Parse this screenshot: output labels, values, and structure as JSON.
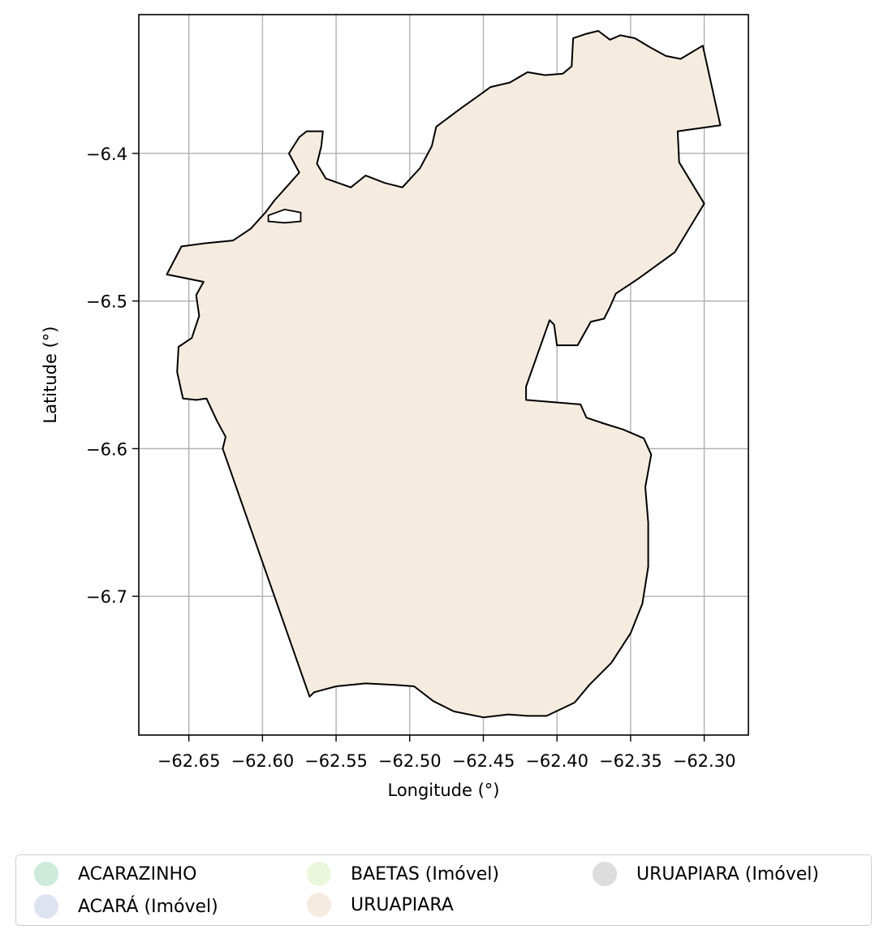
{
  "chart_data": {
    "type": "map",
    "xlabel": "Longitude (°)",
    "ylabel": "Latitude (°)",
    "xlim": [
      -62.684,
      -62.27
    ],
    "ylim": [
      -6.794,
      -6.306
    ],
    "grid": true,
    "xticks": [
      -62.65,
      -62.6,
      -62.55,
      -62.5,
      -62.45,
      -62.4,
      -62.35,
      -62.3
    ],
    "xtick_labels": [
      "−62.65",
      "−62.60",
      "−62.55",
      "−62.50",
      "−62.45",
      "−62.40",
      "−62.35",
      "−62.30"
    ],
    "yticks": [
      -6.4,
      -6.5,
      -6.6,
      -6.7
    ],
    "ytick_labels": [
      "−6.4",
      "−6.5",
      "−6.6",
      "−6.7"
    ],
    "fill_color": "#f5ebdf",
    "outline_color": "#000000",
    "grid_color": "#b0b0b0",
    "boundary": [
      [
        -62.665,
        -6.482
      ],
      [
        -62.655,
        -6.463
      ],
      [
        -62.64,
        -6.461
      ],
      [
        -62.62,
        -6.459
      ],
      [
        -62.608,
        -6.451
      ],
      [
        -62.598,
        -6.44
      ],
      [
        -62.592,
        -6.432
      ],
      [
        -62.583,
        -6.422
      ],
      [
        -62.575,
        -6.413
      ],
      [
        -62.582,
        -6.4
      ],
      [
        -62.575,
        -6.389
      ],
      [
        -62.57,
        -6.385
      ],
      [
        -62.559,
        -6.385
      ],
      [
        -62.56,
        -6.395
      ],
      [
        -62.563,
        -6.407
      ],
      [
        -62.557,
        -6.417
      ],
      [
        -62.54,
        -6.423
      ],
      [
        -62.53,
        -6.415
      ],
      [
        -62.517,
        -6.42
      ],
      [
        -62.505,
        -6.423
      ],
      [
        -62.493,
        -6.41
      ],
      [
        -62.485,
        -6.395
      ],
      [
        -62.482,
        -6.382
      ],
      [
        -62.466,
        -6.37
      ],
      [
        -62.452,
        -6.36
      ],
      [
        -62.445,
        -6.355
      ],
      [
        -62.432,
        -6.352
      ],
      [
        -62.42,
        -6.345
      ],
      [
        -62.408,
        -6.347
      ],
      [
        -62.396,
        -6.346
      ],
      [
        -62.39,
        -6.341
      ],
      [
        -62.389,
        -6.322
      ],
      [
        -62.38,
        -6.319
      ],
      [
        -62.372,
        -6.317
      ],
      [
        -62.364,
        -6.323
      ],
      [
        -62.357,
        -6.32
      ],
      [
        -62.347,
        -6.322
      ],
      [
        -62.337,
        -6.328
      ],
      [
        -62.326,
        -6.334
      ],
      [
        -62.316,
        -6.336
      ],
      [
        -62.301,
        -6.327
      ],
      [
        -62.289,
        -6.381
      ],
      [
        -62.318,
        -6.385
      ],
      [
        -62.317,
        -6.406
      ],
      [
        -62.3,
        -6.434
      ],
      [
        -62.32,
        -6.467
      ],
      [
        -62.345,
        -6.485
      ],
      [
        -62.36,
        -6.495
      ],
      [
        -62.364,
        -6.504
      ],
      [
        -62.368,
        -6.512
      ],
      [
        -62.377,
        -6.514
      ],
      [
        -62.386,
        -6.53
      ],
      [
        -62.4,
        -6.53
      ],
      [
        -62.402,
        -6.516
      ],
      [
        -62.405,
        -6.513
      ],
      [
        -62.421,
        -6.558
      ],
      [
        -62.421,
        -6.567
      ],
      [
        -62.384,
        -6.57
      ],
      [
        -62.38,
        -6.579
      ],
      [
        -62.368,
        -6.583
      ],
      [
        -62.355,
        -6.587
      ],
      [
        -62.341,
        -6.593
      ],
      [
        -62.336,
        -6.604
      ],
      [
        -62.34,
        -6.626
      ],
      [
        -62.338,
        -6.65
      ],
      [
        -62.338,
        -6.68
      ],
      [
        -62.342,
        -6.705
      ],
      [
        -62.35,
        -6.725
      ],
      [
        -62.363,
        -6.745
      ],
      [
        -62.378,
        -6.76
      ],
      [
        -62.388,
        -6.772
      ],
      [
        -62.407,
        -6.781
      ],
      [
        -62.42,
        -6.781
      ],
      [
        -62.433,
        -6.78
      ],
      [
        -62.45,
        -6.782
      ],
      [
        -62.47,
        -6.778
      ],
      [
        -62.484,
        -6.771
      ],
      [
        -62.497,
        -6.761
      ],
      [
        -62.51,
        -6.76
      ],
      [
        -62.53,
        -6.759
      ],
      [
        -62.55,
        -6.761
      ],
      [
        -62.565,
        -6.765
      ],
      [
        -62.568,
        -6.768
      ],
      [
        -62.627,
        -6.6
      ],
      [
        -62.625,
        -6.592
      ],
      [
        -62.631,
        -6.581
      ],
      [
        -62.638,
        -6.566
      ],
      [
        -62.645,
        -6.567
      ],
      [
        -62.654,
        -6.566
      ],
      [
        -62.658,
        -6.548
      ],
      [
        -62.657,
        -6.531
      ],
      [
        -62.648,
        -6.525
      ],
      [
        -62.643,
        -6.51
      ],
      [
        -62.645,
        -6.496
      ],
      [
        -62.64,
        -6.487
      ],
      [
        -62.655,
        -6.484
      ]
    ],
    "islands": [
      [
        [
          -62.596,
          -6.442
        ],
        [
          -62.585,
          -6.438
        ],
        [
          -62.574,
          -6.44
        ],
        [
          -62.574,
          -6.446
        ],
        [
          -62.585,
          -6.447
        ],
        [
          -62.596,
          -6.446
        ]
      ]
    ]
  },
  "legend": {
    "items": [
      {
        "label": "ACARAZINHO",
        "color": "#cdeadb"
      },
      {
        "label": "ACARÁ (Imóvel)",
        "color": "#dde3ef"
      },
      {
        "label": "BAETAS (Imóvel)",
        "color": "#eaf7dd"
      },
      {
        "label": "URUAPIARA",
        "color": "#f5ebdf"
      },
      {
        "label": "URUAPIARA (Imóvel)",
        "color": "#dddddd"
      }
    ]
  }
}
